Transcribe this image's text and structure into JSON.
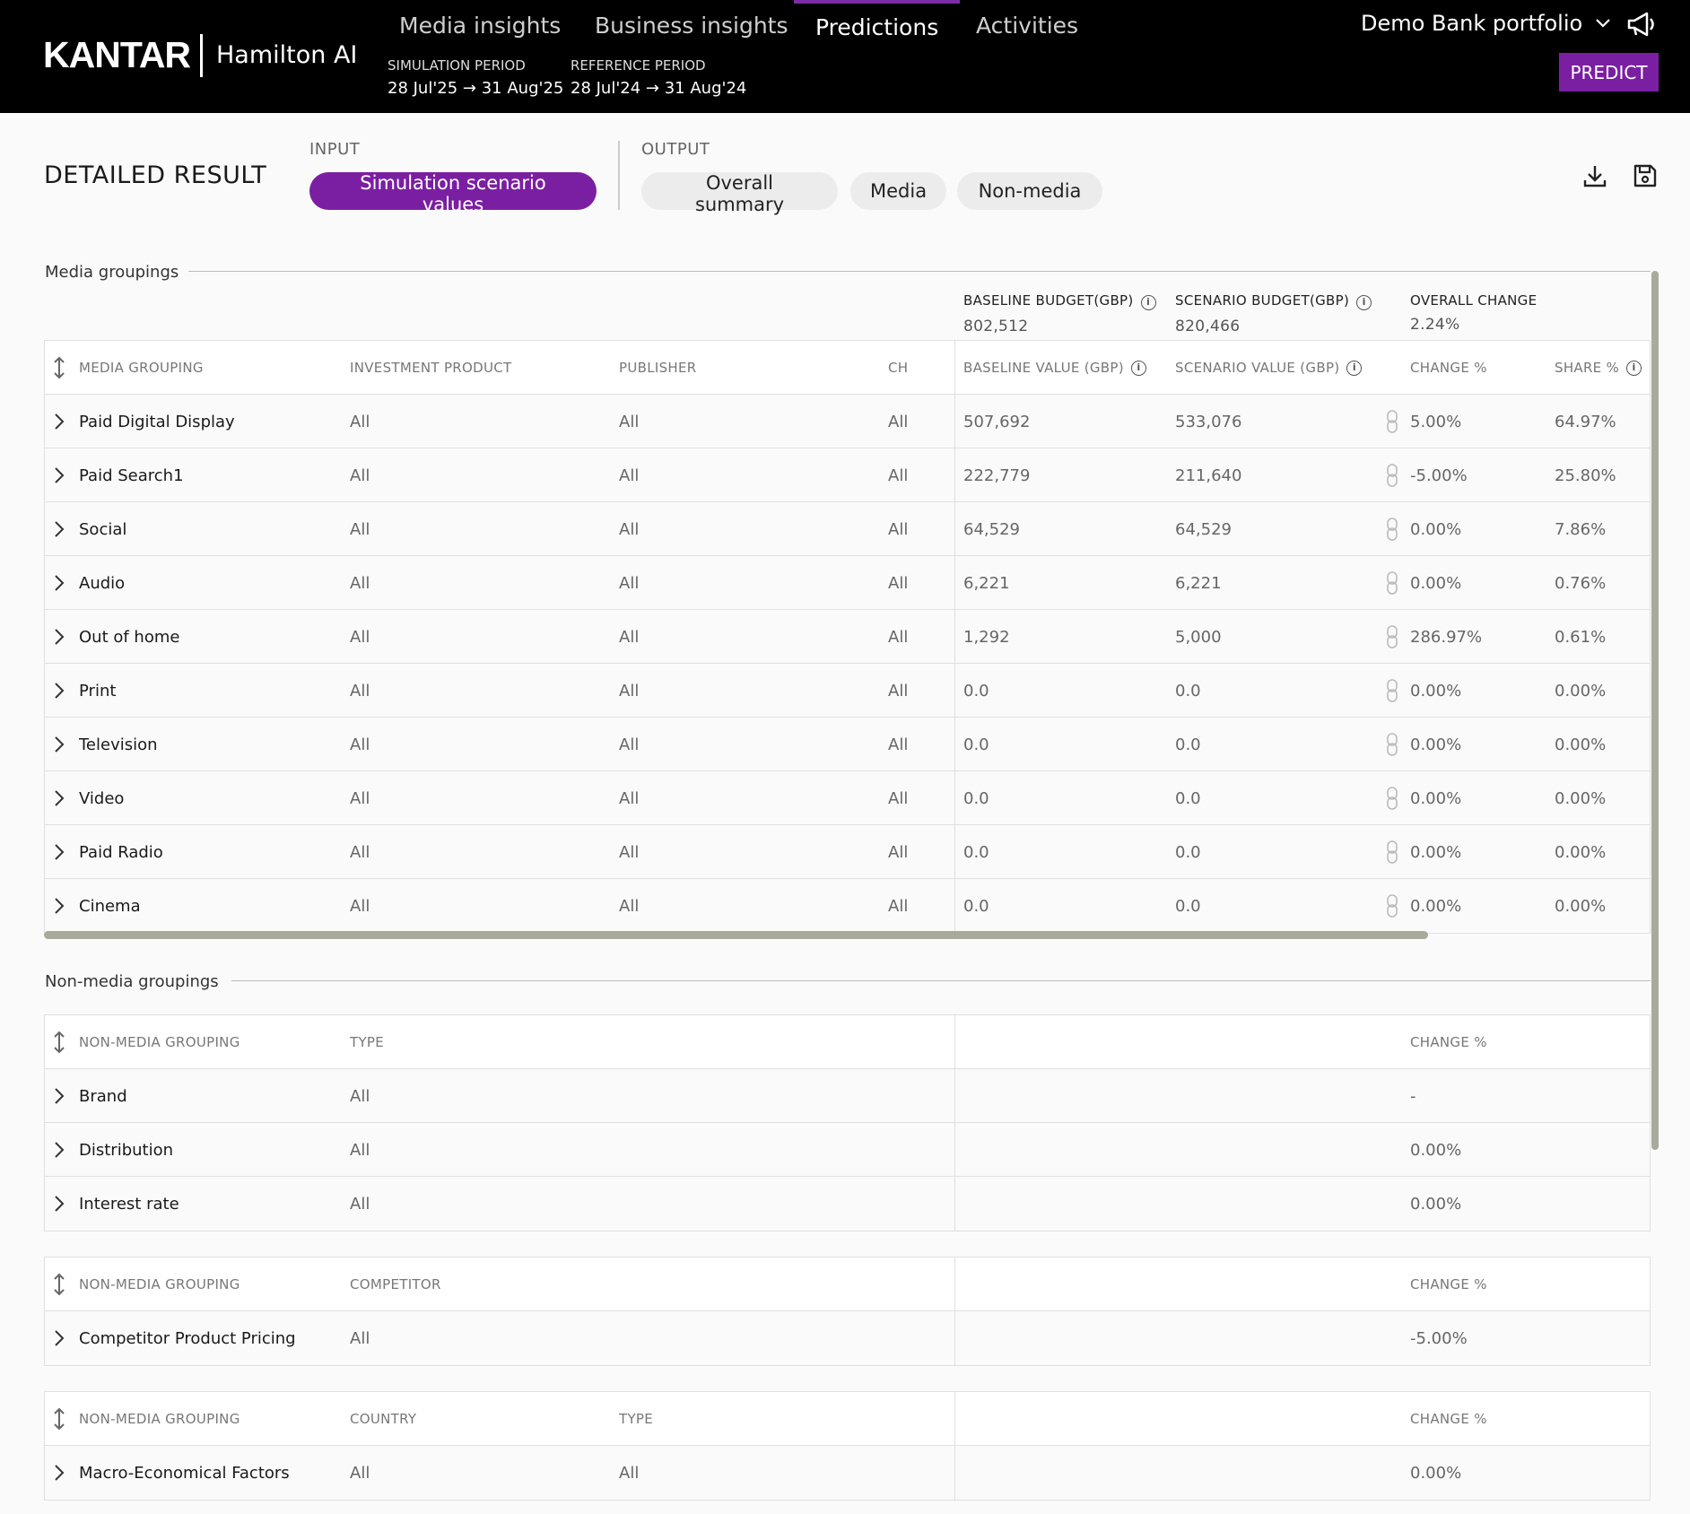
{
  "header": {
    "logo": "KANTAR",
    "product": "Hamilton AI",
    "nav": [
      "Media insights",
      "Business insights",
      "Predictions",
      "Activities"
    ],
    "active_nav": "Predictions",
    "simulation_period_label": "SIMULATION PERIOD",
    "simulation_period_value": "28 Jul'25 → 31 Aug'25",
    "reference_period_label": "REFERENCE PERIOD",
    "reference_period_value": "28 Jul'24 → 31 Aug'24",
    "portfolio": "Demo Bank portfolio",
    "predict_label": "PREDICT",
    "accent_color": "#7b1fa2"
  },
  "result": {
    "title": "DETAILED RESULT",
    "input_label": "INPUT",
    "input_pill": "Simulation scenario values",
    "output_label": "OUTPUT",
    "output_pills": [
      "Overall summary",
      "Media",
      "Non-media"
    ],
    "icons": [
      "download-icon",
      "save-icon"
    ]
  },
  "media": {
    "group_title": "Media groupings",
    "baseline_budget_label": "BASELINE BUDGET(GBP)",
    "baseline_budget_value": "802,512",
    "scenario_budget_label": "SCENARIO BUDGET(GBP)",
    "scenario_budget_value": "820,466",
    "overall_change_label": "OVERALL CHANGE",
    "overall_change_value": "2.24%",
    "columns": [
      "MEDIA GROUPING",
      "INVESTMENT PRODUCT",
      "PUBLISHER",
      "CH",
      "BASELINE VALUE (GBP)",
      "SCENARIO VALUE (GBP)",
      "CHANGE %",
      "SHARE %"
    ],
    "rows": [
      {
        "name": "Paid Digital Display",
        "product": "All",
        "publisher": "All",
        "ch": "All",
        "baseline": "507,692",
        "scenario": "533,076",
        "change": "5.00%",
        "share": "64.97%"
      },
      {
        "name": "Paid Search1",
        "product": "All",
        "publisher": "All",
        "ch": "All",
        "baseline": "222,779",
        "scenario": "211,640",
        "change": "-5.00%",
        "share": "25.80%"
      },
      {
        "name": "Social",
        "product": "All",
        "publisher": "All",
        "ch": "All",
        "baseline": "64,529",
        "scenario": "64,529",
        "change": "0.00%",
        "share": "7.86%"
      },
      {
        "name": "Audio",
        "product": "All",
        "publisher": "All",
        "ch": "All",
        "baseline": "6,221",
        "scenario": "6,221",
        "change": "0.00%",
        "share": "0.76%"
      },
      {
        "name": "Out of home",
        "product": "All",
        "publisher": "All",
        "ch": "All",
        "baseline": "1,292",
        "scenario": "5,000",
        "change": "286.97%",
        "share": "0.61%"
      },
      {
        "name": "Print",
        "product": "All",
        "publisher": "All",
        "ch": "All",
        "baseline": "0.0",
        "scenario": "0.0",
        "change": "0.00%",
        "share": "0.00%"
      },
      {
        "name": "Television",
        "product": "All",
        "publisher": "All",
        "ch": "All",
        "baseline": "0.0",
        "scenario": "0.0",
        "change": "0.00%",
        "share": "0.00%"
      },
      {
        "name": "Video",
        "product": "All",
        "publisher": "All",
        "ch": "All",
        "baseline": "0.0",
        "scenario": "0.0",
        "change": "0.00%",
        "share": "0.00%"
      },
      {
        "name": "Paid Radio",
        "product": "All",
        "publisher": "All",
        "ch": "All",
        "baseline": "0.0",
        "scenario": "0.0",
        "change": "0.00%",
        "share": "0.00%"
      },
      {
        "name": "Cinema",
        "product": "All",
        "publisher": "All",
        "ch": "All",
        "baseline": "0.0",
        "scenario": "0.0",
        "change": "0.00%",
        "share": "0.00%"
      }
    ]
  },
  "nonmedia": {
    "group_title": "Non-media groupings",
    "table1": {
      "columns": [
        "NON-MEDIA GROUPING",
        "TYPE",
        "CHANGE %"
      ],
      "rows": [
        {
          "name": "Brand",
          "type": "All",
          "change": "-"
        },
        {
          "name": "Distribution",
          "type": "All",
          "change": "0.00%"
        },
        {
          "name": "Interest rate",
          "type": "All",
          "change": "0.00%"
        }
      ]
    },
    "table2": {
      "columns": [
        "NON-MEDIA GROUPING",
        "COMPETITOR",
        "CHANGE %"
      ],
      "rows": [
        {
          "name": "Competitor Product Pricing",
          "competitor": "All",
          "change": "-5.00%"
        }
      ]
    },
    "table3": {
      "columns": [
        "NON-MEDIA GROUPING",
        "COUNTRY",
        "TYPE",
        "CHANGE %"
      ],
      "rows": [
        {
          "name": "Macro-Economical Factors",
          "country": "All",
          "type": "All",
          "change": "0.00%"
        }
      ]
    }
  }
}
